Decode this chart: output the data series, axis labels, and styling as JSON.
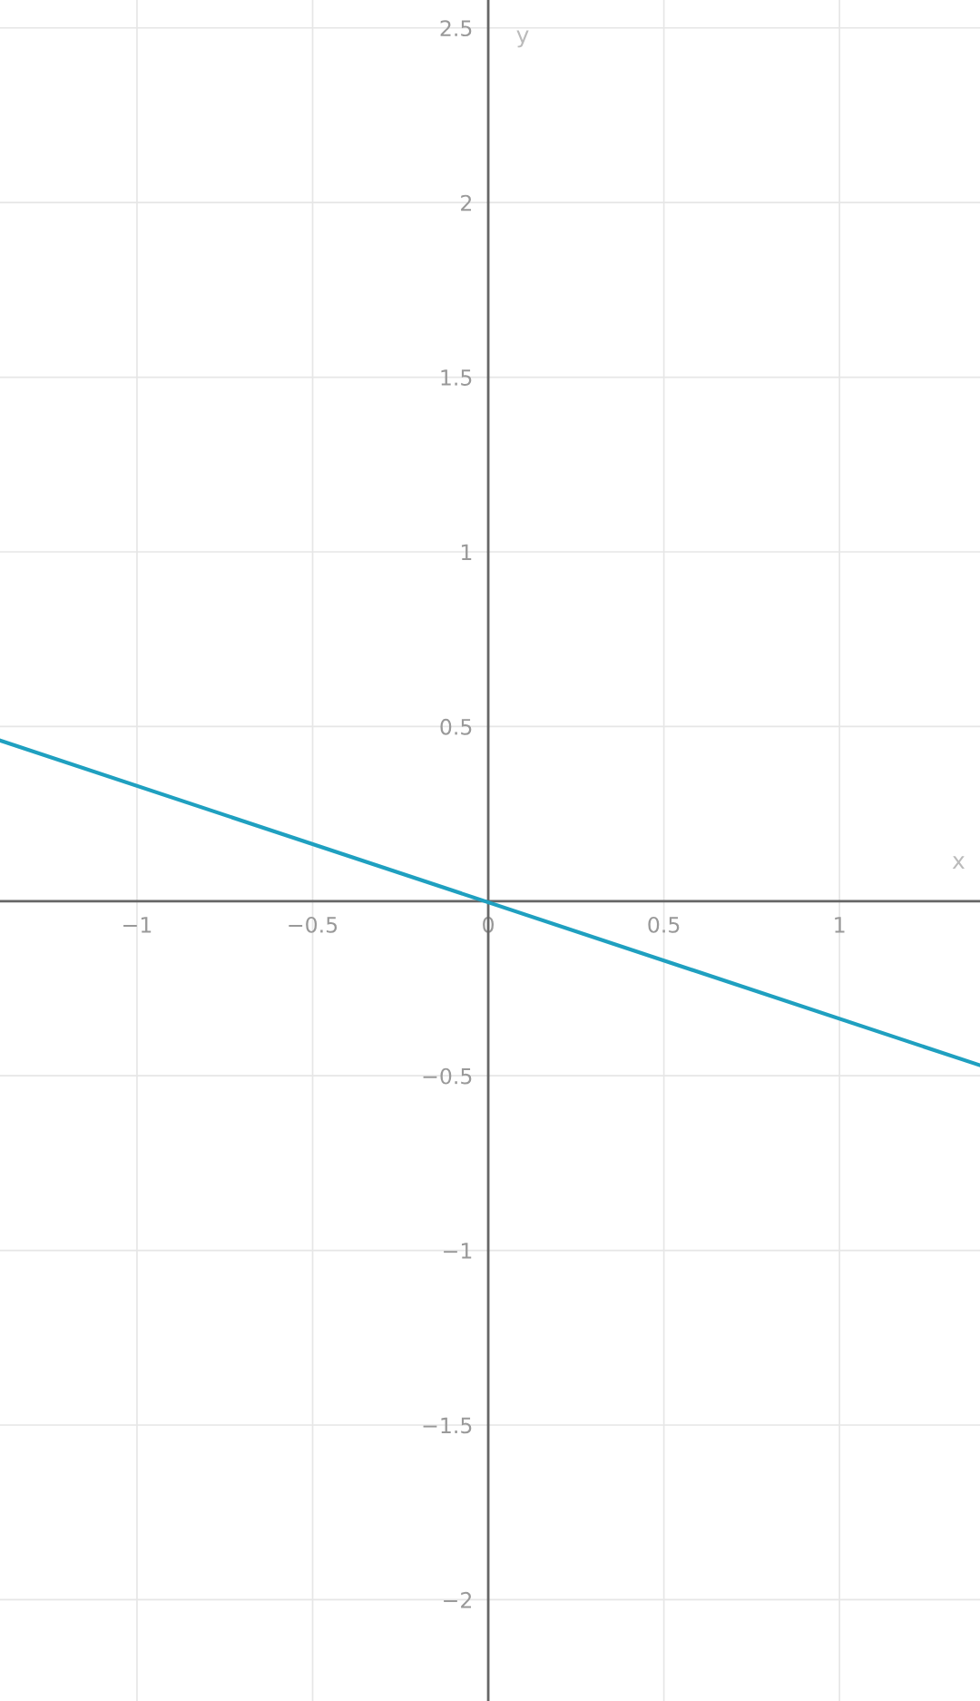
{
  "chart_data": {
    "type": "line",
    "xlabel": "x",
    "ylabel": "y",
    "xlim": [
      -1.39,
      1.4
    ],
    "ylim": [
      -2.29,
      2.58
    ],
    "xticks": [
      {
        "value": -1,
        "label": "−1"
      },
      {
        "value": -0.5,
        "label": "−0.5"
      },
      0,
      0.5,
      1
    ],
    "yticks": [
      {
        "value": -2,
        "label": "−2"
      },
      {
        "value": -1.5,
        "label": "−1.5"
      },
      {
        "value": -1,
        "label": "−1"
      },
      {
        "value": -0.5,
        "label": "−0.5"
      },
      0.5,
      1,
      1.5,
      2,
      2.5
    ],
    "grid": true,
    "marker": "none",
    "line_style": "solid",
    "series": [
      {
        "color": "#1fa0c0",
        "x": [
          -1.39,
          1.4
        ],
        "values": [
          0.46,
          -0.47
        ]
      }
    ]
  }
}
